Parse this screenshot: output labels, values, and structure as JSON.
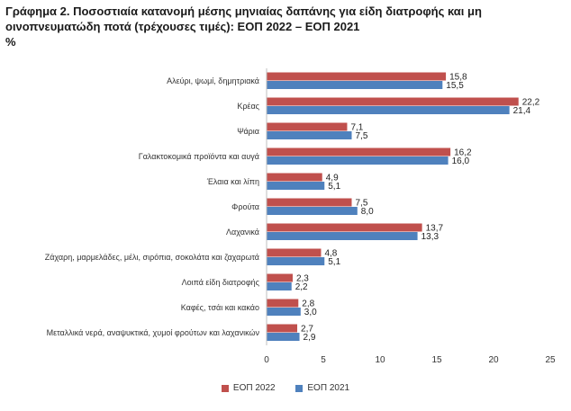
{
  "title": {
    "line1": "Γράφημα 2.  Ποσοστιαία κατανομή μέσης μηνιαίας δαπάνης για είδη διατροφής και μη",
    "line2": "οινοπνευματώδη ποτά (τρέχουσες τιμές): ΕΟΠ 2022 – ΕΟΠ 2021",
    "line3": "%"
  },
  "chart_data": {
    "type": "bar",
    "orientation": "horizontal",
    "categories": [
      "Αλεύρι, ψωμί, δημητριακά",
      "Κρέας",
      "Ψάρια",
      "Γαλακτοκομικά προϊόντα και αυγά",
      "Έλαια και λίπη",
      "Φρούτα",
      "Λαχανικά",
      "Ζάχαρη, μαρμελάδες, μέλι, σιρόπια, σοκολάτα και ζαχαρωτά",
      "Λοιπά είδη διατροφής",
      "Καφές, τσάι και κακάο",
      "Μεταλλικά νερά, αναψυκτικά, χυμοί φρούτων και λαχανικών"
    ],
    "series": [
      {
        "name": "ΕΟΠ 2022",
        "color": "#c0504d",
        "values": [
          15.8,
          22.2,
          7.1,
          16.2,
          4.9,
          7.5,
          13.7,
          4.8,
          2.3,
          2.8,
          2.7
        ],
        "labels": [
          "15,8",
          "22,2",
          "7,1",
          "16,2",
          "4,9",
          "7,5",
          "13,7",
          "4,8",
          "2,3",
          "2,8",
          "2,7"
        ]
      },
      {
        "name": "ΕΟΠ 2021",
        "color": "#4f81bd",
        "values": [
          15.5,
          21.4,
          7.5,
          16.0,
          5.1,
          8.0,
          13.3,
          5.1,
          2.2,
          3.0,
          2.9
        ],
        "labels": [
          "15,5",
          "21,4",
          "7,5",
          "16,0",
          "5,1",
          "8,0",
          "13,3",
          "5,1",
          "2,2",
          "3,0",
          "2,9"
        ]
      }
    ],
    "xlim": [
      0,
      25
    ],
    "xticks": [
      0,
      5,
      10,
      15,
      20,
      25
    ],
    "xtick_labels": [
      "0",
      "5",
      "10",
      "15",
      "20",
      "25"
    ],
    "grid": false,
    "legend_position": "bottom"
  }
}
